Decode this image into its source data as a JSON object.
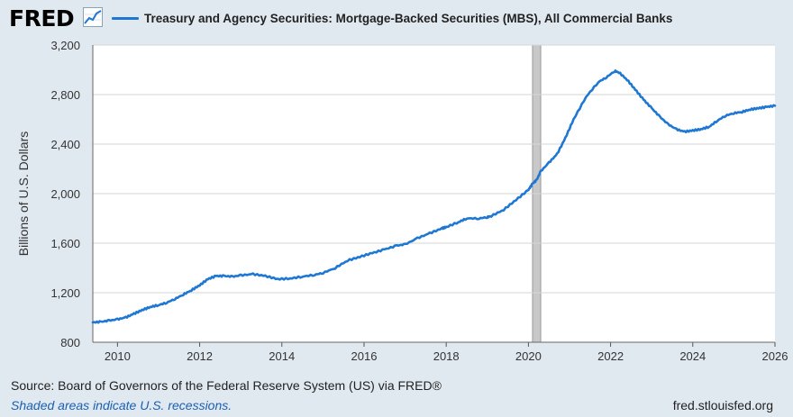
{
  "header": {
    "logo_text": "FRED",
    "logo_icon": "line-graph-icon"
  },
  "colors": {
    "series": "#1f77d4",
    "plot_bg": "#ffffff",
    "page_bg": "#e1e9f0",
    "recession": "#c8c8c8",
    "grid": "#d6d6d6"
  },
  "footer": {
    "source": "Source: Board of Governors of the Federal Reserve System (US) via FRED®",
    "note": "Shaded areas indicate U.S. recessions.",
    "site": "fred.stlouisfed.org"
  },
  "chart_data": {
    "type": "line",
    "title": "",
    "xlabel": "",
    "ylabel": "Billions of U.S. Dollars",
    "xlim": [
      2009.4,
      2026.0
    ],
    "ylim": [
      800,
      3200
    ],
    "x_ticks": [
      2010,
      2012,
      2014,
      2016,
      2018,
      2020,
      2022,
      2024,
      2026
    ],
    "y_ticks": [
      800,
      1200,
      1600,
      2000,
      2400,
      2800,
      3200
    ],
    "y_tick_labels": [
      "800",
      "1,200",
      "1,600",
      "2,000",
      "2,400",
      "2,800",
      "3,200"
    ],
    "grid": true,
    "legend_position": "top",
    "recessions": [
      [
        2020.1,
        2020.3
      ]
    ],
    "series": [
      {
        "name": "Treasury and Agency Securities: Mortgage-Backed Securities (MBS), All Commercial Banks",
        "x": [
          2009.4,
          2009.6,
          2009.8,
          2010.0,
          2010.2,
          2010.4,
          2010.6,
          2010.8,
          2011.0,
          2011.2,
          2011.4,
          2011.6,
          2011.8,
          2012.0,
          2012.2,
          2012.4,
          2012.6,
          2012.8,
          2013.0,
          2013.3,
          2013.6,
          2013.9,
          2014.2,
          2014.5,
          2014.8,
          2015.0,
          2015.3,
          2015.6,
          2015.9,
          2016.2,
          2016.5,
          2016.8,
          2017.0,
          2017.3,
          2017.6,
          2017.9,
          2018.0,
          2018.3,
          2018.5,
          2018.8,
          2019.0,
          2019.1,
          2019.4,
          2019.7,
          2020.0,
          2020.1,
          2020.2,
          2020.3,
          2020.5,
          2020.7,
          2020.9,
          2021.1,
          2021.4,
          2021.7,
          2021.9,
          2022.1,
          2022.2,
          2022.4,
          2022.6,
          2022.8,
          2023.0,
          2023.2,
          2023.4,
          2023.6,
          2023.8,
          2024.0,
          2024.2,
          2024.4,
          2024.6,
          2024.8,
          2025.0,
          2025.2,
          2025.4,
          2025.6,
          2025.8,
          2026.0
        ],
        "values": [
          960,
          965,
          975,
          985,
          1000,
          1030,
          1060,
          1085,
          1100,
          1120,
          1150,
          1185,
          1220,
          1260,
          1310,
          1335,
          1335,
          1330,
          1340,
          1350,
          1335,
          1310,
          1315,
          1330,
          1345,
          1360,
          1400,
          1460,
          1490,
          1520,
          1550,
          1580,
          1590,
          1640,
          1680,
          1720,
          1730,
          1770,
          1800,
          1800,
          1810,
          1820,
          1870,
          1950,
          2030,
          2080,
          2110,
          2180,
          2250,
          2320,
          2450,
          2600,
          2780,
          2900,
          2940,
          2990,
          2980,
          2920,
          2840,
          2760,
          2690,
          2620,
          2560,
          2520,
          2500,
          2510,
          2520,
          2540,
          2590,
          2630,
          2650,
          2660,
          2680,
          2690,
          2700,
          2710
        ]
      }
    ]
  }
}
